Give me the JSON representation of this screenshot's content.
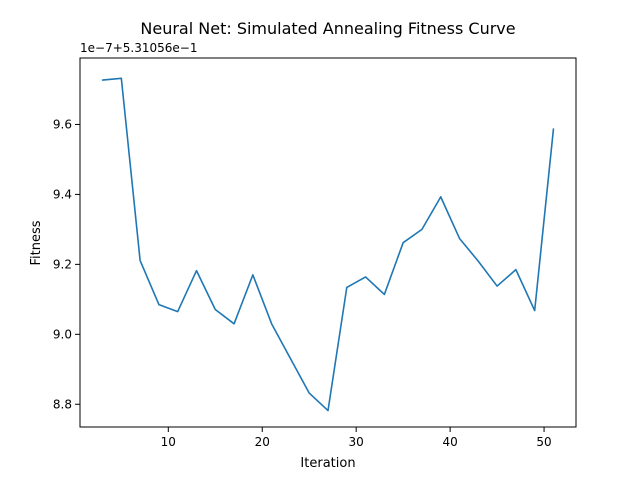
{
  "chart_data": {
    "type": "line",
    "title": "Neural Net: Simulated Annealing Fitness Curve",
    "xlabel": "Iteration",
    "ylabel": "Fitness",
    "offset_text": "1e−7+5.31056e−1",
    "xlim": [
      0.6,
      53.4
    ],
    "ylim": [
      8.735,
      9.79
    ],
    "x_ticks": [
      10,
      20,
      30,
      40,
      50
    ],
    "y_ticks": [
      8.8,
      9.0,
      9.2,
      9.4,
      9.6
    ],
    "x_tick_labels": [
      "10",
      "20",
      "30",
      "40",
      "50"
    ],
    "y_tick_labels": [
      "8.8",
      "9.0",
      "9.2",
      "9.4",
      "9.6"
    ],
    "grid": false,
    "series": [
      {
        "color": "#1f77b4",
        "x": [
          3,
          5,
          7,
          9,
          11,
          13,
          15,
          17,
          19,
          21,
          23,
          25,
          27,
          29,
          31,
          33,
          35,
          37,
          39,
          41,
          43,
          45,
          47,
          49,
          51
        ],
        "y": [
          9.727,
          9.732,
          9.211,
          9.085,
          9.065,
          9.182,
          9.071,
          9.03,
          9.17,
          9.03,
          8.931,
          8.832,
          8.782,
          9.134,
          9.164,
          9.114,
          9.262,
          9.3,
          9.393,
          9.274,
          9.209,
          9.138,
          9.185,
          9.068,
          9.587
        ]
      }
    ]
  }
}
